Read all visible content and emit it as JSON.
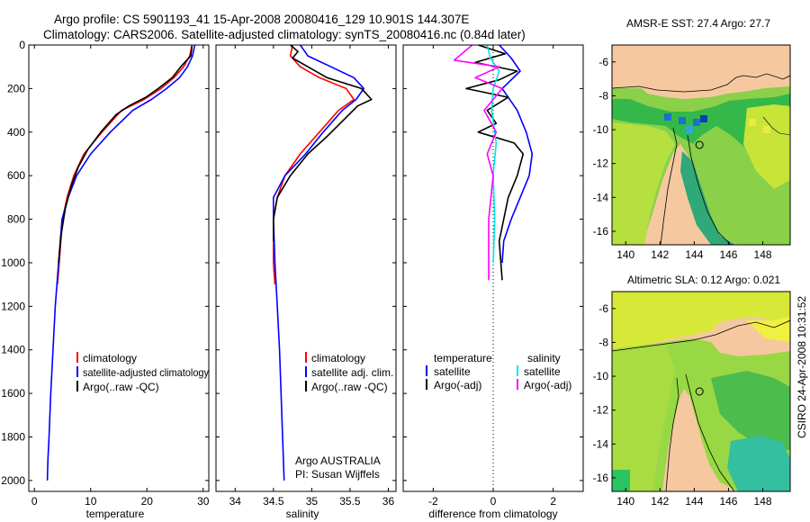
{
  "header": {
    "line1": "Argo profile: CS 5901193_41 15-Apr-2008 20080416_129 10.901S 144.307E",
    "line2": "Climatology: CARS2006. Satellite-adjusted climatology: synTS_20080416.nc (0.84d later)"
  },
  "side_label": "CSIRO 24-Apr-2008 10:31:52",
  "colors": {
    "climatology": "#ff0000",
    "satellite": "#0000ff",
    "argo": "#000000",
    "salinity_satellite": "#00e5e5",
    "salinity_argo": "#ff00ff",
    "land": "#f5c8a0"
  },
  "chart_data": [
    {
      "type": "line",
      "id": "temperature",
      "xlabel": "temperature",
      "xlim": [
        -1,
        31
      ],
      "ylim": [
        2050,
        0
      ],
      "xticks": [
        0,
        10,
        20,
        30
      ],
      "yticks": [
        0,
        200,
        400,
        600,
        800,
        1000,
        1200,
        1400,
        1600,
        1800,
        2000
      ],
      "legend": {
        "placement": "lower-left",
        "entries": [
          "climatology",
          "satellite-adjusted climatology",
          "Argo(..raw -QC)"
        ]
      },
      "series": [
        {
          "name": "climatology",
          "color": "#ff0000",
          "x": [
            28,
            27.6,
            26.5,
            24.8,
            22.5,
            19.5,
            15.5,
            12,
            8.8,
            7,
            5.8,
            5,
            4.4,
            4.1
          ],
          "y": [
            0,
            50,
            100,
            150,
            200,
            250,
            300,
            400,
            500,
            600,
            700,
            800,
            1000,
            1100
          ]
        },
        {
          "name": "satellite-adjusted climatology",
          "color": "#0000ff",
          "x": [
            28.5,
            28.1,
            27.2,
            25.8,
            23.5,
            20.8,
            17.5,
            13.5,
            10,
            7.5,
            6,
            4.9,
            4.3,
            3.7,
            3.3,
            2.9,
            2.6,
            2.4,
            2.3
          ],
          "y": [
            0,
            50,
            100,
            150,
            200,
            250,
            300,
            400,
            500,
            600,
            700,
            800,
            1000,
            1200,
            1400,
            1600,
            1800,
            1900,
            2000
          ]
        },
        {
          "name": "Argo(..raw -QC)",
          "color": "#000000",
          "x": [
            28,
            27.8,
            26,
            24.5,
            22,
            19.8,
            16.8,
            14.5,
            11.8,
            9.5,
            7.8,
            6.5,
            5.5,
            4.7,
            4.3
          ],
          "y": [
            5,
            50,
            100,
            150,
            200,
            240,
            280,
            320,
            400,
            480,
            560,
            650,
            750,
            880,
            1000
          ]
        }
      ]
    },
    {
      "type": "line",
      "id": "salinity",
      "xlabel": "salinity",
      "xlim": [
        33.75,
        36.1
      ],
      "ylim": [
        2050,
        0
      ],
      "xticks": [
        34,
        34.5,
        35,
        35.5,
        36
      ],
      "legend": {
        "placement": "lower-left",
        "entries": [
          "climatology",
          "satellite adj. clim.",
          "Argo(..raw -QC)"
        ]
      },
      "annotation": [
        "Argo AUSTRALIA",
        "PI: Susan Wijffels"
      ],
      "series": [
        {
          "name": "climatology",
          "color": "#ff0000",
          "x": [
            34.75,
            34.72,
            34.85,
            35.1,
            35.45,
            35.55,
            35.35,
            35.1,
            34.85,
            34.65,
            34.55,
            34.5,
            34.5,
            34.52
          ],
          "y": [
            0,
            50,
            100,
            150,
            200,
            250,
            300,
            400,
            500,
            600,
            700,
            800,
            1000,
            1100
          ]
        },
        {
          "name": "satellite adj. clim.",
          "color": "#0000ff",
          "x": [
            34.85,
            34.95,
            35.25,
            35.55,
            35.68,
            35.58,
            35.4,
            35.15,
            34.92,
            34.65,
            34.5,
            34.5,
            34.52,
            34.55,
            34.58,
            34.6,
            34.62,
            34.64
          ],
          "y": [
            0,
            50,
            100,
            150,
            200,
            250,
            300,
            400,
            500,
            600,
            700,
            800,
            1000,
            1200,
            1400,
            1600,
            1800,
            2000
          ]
        },
        {
          "name": "Argo(..raw -QC)",
          "color": "#000000",
          "x": [
            34.72,
            34.82,
            34.75,
            34.95,
            35.2,
            35.65,
            35.78,
            35.6,
            35.4,
            35.2,
            34.95,
            34.72,
            34.55,
            34.5,
            34.5
          ],
          "y": [
            0,
            30,
            60,
            100,
            150,
            200,
            250,
            280,
            350,
            420,
            500,
            600,
            700,
            800,
            900
          ]
        }
      ]
    },
    {
      "type": "line",
      "id": "difference",
      "xlabel": "difference from climatology",
      "xlim": [
        -3,
        3
      ],
      "ylim": [
        2050,
        0
      ],
      "xticks": [
        -2,
        0,
        2
      ],
      "legend": {
        "placement": "lower-center",
        "column_headers": [
          "temperature",
          "salinity"
        ],
        "entries": [
          "satellite",
          "Argo(-adj)",
          "satellite",
          "Argo(-adj)"
        ]
      },
      "series": [
        {
          "name": "temperature satellite",
          "color": "#0000ff",
          "x": [
            0.2,
            0.6,
            0.9,
            0.3,
            0.8,
            1.1,
            1.3,
            1.2,
            0.9,
            0.6,
            0.35,
            0.3
          ],
          "y": [
            0,
            60,
            120,
            200,
            300,
            400,
            500,
            600,
            700,
            800,
            900,
            1000
          ]
        },
        {
          "name": "temperature Argo(-adj)",
          "color": "#000000",
          "x": [
            -0.5,
            0.4,
            -0.6,
            0.8,
            0.2,
            -0.9,
            0.5,
            -0.2,
            0.1,
            -0.5,
            0.7,
            1.0,
            0.8,
            0.5,
            0.2,
            0.3
          ],
          "y": [
            0,
            40,
            80,
            120,
            160,
            200,
            240,
            300,
            360,
            400,
            450,
            500,
            600,
            700,
            900,
            1080
          ]
        },
        {
          "name": "salinity satellite",
          "color": "#00e5e5",
          "x": [
            -0.2,
            -0.1,
            0.2,
            0.0,
            -0.05,
            0.1,
            0.0,
            0.05,
            0.0
          ],
          "y": [
            0,
            60,
            120,
            200,
            300,
            450,
            600,
            800,
            1000
          ]
        },
        {
          "name": "salinity Argo(-adj)",
          "color": "#ff00ff",
          "x": [
            -0.7,
            -1.3,
            0.2,
            -0.6,
            0.3,
            -0.3,
            0.1,
            -0.2,
            0.0,
            -0.15,
            -0.15
          ],
          "y": [
            0,
            70,
            100,
            150,
            200,
            300,
            400,
            500,
            600,
            800,
            1080
          ]
        }
      ]
    },
    {
      "type": "heatmap",
      "id": "sst-map",
      "title": "AMSR-E SST: 27.4  Argo: 27.7",
      "xlim": [
        139.2,
        149.6
      ],
      "ylim": [
        -16.8,
        -5
      ],
      "xticks": [
        140,
        142,
        144,
        146,
        148
      ],
      "yticks": [
        -6,
        -8,
        -10,
        -12,
        -14,
        -16
      ],
      "marker": {
        "lon": 144.307,
        "lat": -10.901
      }
    },
    {
      "type": "heatmap",
      "id": "sla-map",
      "title": "Altimetric SLA: 0.12  Argo: 0.021",
      "xlim": [
        139.2,
        149.6
      ],
      "ylim": [
        -16.8,
        -5
      ],
      "xticks": [
        140,
        142,
        144,
        146,
        148
      ],
      "yticks": [
        -6,
        -8,
        -10,
        -12,
        -14,
        -16
      ],
      "marker": {
        "lon": 144.307,
        "lat": -10.901
      }
    }
  ]
}
